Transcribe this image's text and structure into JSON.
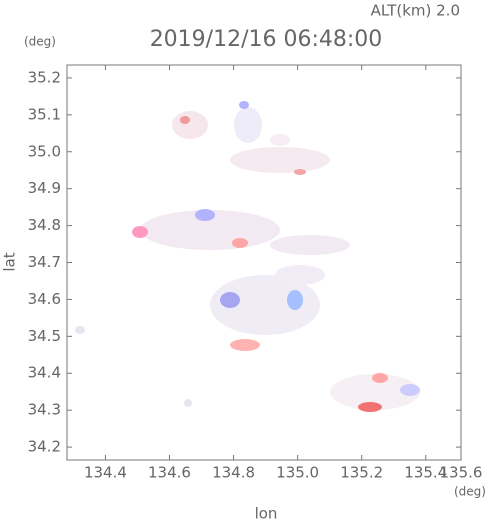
{
  "chart_data": {
    "type": "image",
    "title": "2019/12/16 06:48:00",
    "subtitle": "ALT(km) 2.0",
    "x_label": "lon",
    "y_label": "lat",
    "x_unit": "(deg)",
    "y_unit": "(deg)",
    "xlim": [
      134.28,
      135.51
    ],
    "ylim": [
      34.165,
      35.235
    ],
    "xticks": [
      134.4,
      134.6,
      134.8,
      {
        "value": 135.0,
        "label": "135.0"
      },
      135.2,
      135.4,
      135.6
    ],
    "yticks": [
      34.2,
      34.3,
      34.4,
      34.5,
      34.6,
      34.7,
      34.8,
      34.9,
      {
        "value": 35.0,
        "label": "35.0"
      },
      35.1,
      35.2
    ]
  }
}
